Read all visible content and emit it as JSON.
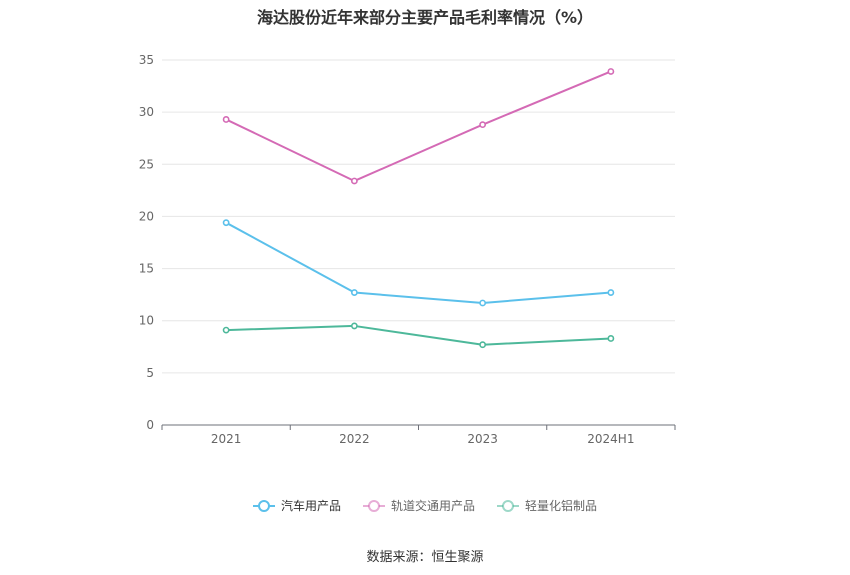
{
  "chart_data": {
    "type": "line",
    "title": "海达股份近年来部分主要产品毛利率情况（%）",
    "xlabel": "",
    "ylabel": "",
    "categories": [
      "2021",
      "2022",
      "2023",
      "2024H1"
    ],
    "ylim": [
      0,
      35
    ],
    "yticks": [
      0,
      5,
      10,
      15,
      20,
      25,
      30,
      35
    ],
    "grid": true,
    "legend_position": "bottom",
    "series": [
      {
        "name": "汽车用产品",
        "color": "#5bc0eb",
        "values": [
          19.4,
          12.7,
          11.7,
          12.7
        ]
      },
      {
        "name": "轨道交通用产品",
        "color": "#d46ab5",
        "values": [
          29.3,
          23.4,
          28.8,
          33.9
        ]
      },
      {
        "name": "轻量化铝制品",
        "color": "#4db89a",
        "values": [
          9.1,
          9.5,
          7.7,
          8.3
        ]
      }
    ]
  },
  "source": "数据来源：恒生聚源"
}
